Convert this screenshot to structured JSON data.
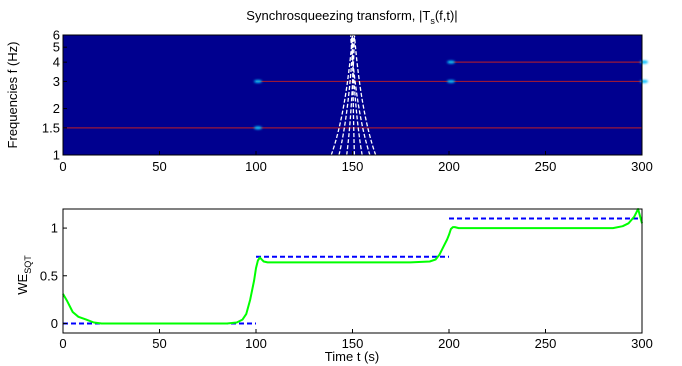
{
  "chart_data": [
    {
      "type": "heatmap",
      "title": "Synchrosqueezing transform, |T",
      "title_sub": "s",
      "title_suffix": "(f,t)|",
      "xlabel": "",
      "ylabel": "Frequencies f (Hz)",
      "x_ticks": [
        "0",
        "50",
        "100",
        "150",
        "200",
        "250",
        "300"
      ],
      "y_ticks": [
        "1",
        "1.5",
        "2",
        "3",
        "4",
        "5",
        "6"
      ],
      "xlim": [
        0,
        300
      ],
      "ylim": [
        1,
        6
      ],
      "y_scale": "log",
      "colors": {
        "background": "#00008f",
        "ridge": "#9a1838",
        "peak": "#00bfff",
        "overlay": "#ffffff"
      },
      "ridges": [
        {
          "f": 1.5,
          "t_start": 0,
          "t_end": 300
        },
        {
          "f": 3,
          "t_start": 100,
          "t_end": 300
        },
        {
          "f": 4,
          "t_start": 200,
          "t_end": 300
        }
      ],
      "peaks": [
        {
          "t": 100,
          "f": 3
        },
        {
          "t": 200,
          "f": 3
        },
        {
          "t": 200,
          "f": 4
        },
        {
          "t": 300,
          "f": 4
        },
        {
          "t": 300,
          "f": 3
        },
        {
          "t": 100,
          "f": 1.5
        }
      ],
      "overlay_curves": [
        {
          "t_bottom": 139,
          "t_top": 150
        },
        {
          "t_bottom": 143,
          "t_top": 150.5
        },
        {
          "t_bottom": 147,
          "t_top": 151
        },
        {
          "t_bottom": 151,
          "t_top": 150
        },
        {
          "t_bottom": 155,
          "t_top": 149.5
        },
        {
          "t_bottom": 159,
          "t_top": 149
        },
        {
          "t_bottom": 162,
          "t_top": 151
        }
      ]
    },
    {
      "type": "line",
      "title": "",
      "xlabel": "Time t (s)",
      "ylabel": "WE",
      "ylabel_sub": "SQT",
      "x_ticks": [
        "0",
        "50",
        "100",
        "150",
        "200",
        "250",
        "300"
      ],
      "y_ticks": [
        "0",
        "0.5",
        "1"
      ],
      "xlim": [
        0,
        300
      ],
      "ylim": [
        -0.1,
        1.2
      ],
      "series": [
        {
          "style": "solid",
          "color": "#00ff00",
          "x": [
            0,
            2,
            5,
            8,
            12,
            16,
            20,
            30,
            50,
            70,
            85,
            90,
            93,
            95,
            97,
            99,
            100,
            101,
            102,
            103,
            104,
            106,
            110,
            120,
            150,
            180,
            190,
            193,
            195,
            197,
            199,
            200,
            201,
            202,
            203,
            205,
            210,
            250,
            285,
            290,
            293,
            296,
            298,
            300
          ],
          "values": [
            0.31,
            0.24,
            0.12,
            0.07,
            0.04,
            0.01,
            0.0,
            0.0,
            0.0,
            0.0,
            0.0,
            0.01,
            0.04,
            0.1,
            0.25,
            0.45,
            0.58,
            0.66,
            0.69,
            0.67,
            0.65,
            0.64,
            0.64,
            0.64,
            0.64,
            0.64,
            0.65,
            0.67,
            0.72,
            0.8,
            0.88,
            0.93,
            0.99,
            1.01,
            1.01,
            1.0,
            1.0,
            1.0,
            1.0,
            1.02,
            1.05,
            1.12,
            1.2,
            1.05
          ]
        },
        {
          "style": "dashed",
          "color": "#0000ff",
          "segments": [
            {
              "x": [
                0,
                100
              ],
              "y": 0
            },
            {
              "x": 100,
              "y0": 0,
              "y1": 0.7,
              "hidden": true
            },
            {
              "x": [
                100,
                200
              ],
              "y": 0.7
            },
            {
              "x": [
                200,
                300
              ],
              "y": 1.1
            }
          ]
        }
      ]
    }
  ]
}
